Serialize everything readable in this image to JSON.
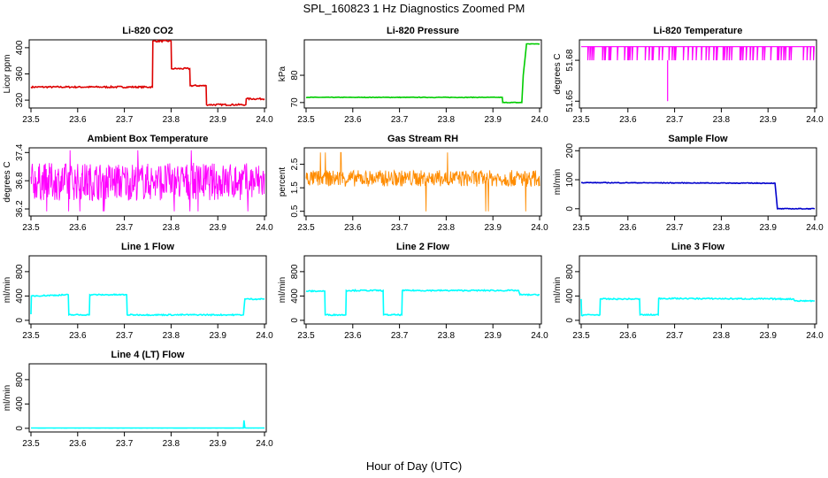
{
  "figure_title": "SPL_160823  1 Hz Diagnostics Zoomed PM",
  "x_axis_label": "Hour of Day (UTC)",
  "chart_data": [
    {
      "type": "line",
      "title": "Li-820 CO2",
      "ylabel": "Licor ppm",
      "color": "#dd0000",
      "xlim": [
        23.5,
        24.0
      ],
      "ylim": [
        308,
        412
      ],
      "xticks": [
        23.5,
        23.6,
        23.7,
        23.8,
        23.9,
        24.0
      ],
      "yticks": [
        320,
        360,
        400
      ],
      "x": [
        23.5,
        23.76,
        23.761,
        23.8,
        23.801,
        23.84,
        23.841,
        23.875,
        23.876,
        23.96,
        23.961,
        24.0
      ],
      "y": [
        340,
        340,
        410,
        410,
        368,
        368,
        342,
        342,
        313,
        313,
        322,
        322
      ],
      "noise": 1.2
    },
    {
      "type": "line",
      "title": "Li-820 Pressure",
      "ylabel": "kPa",
      "color": "#00cc00",
      "xlim": [
        23.5,
        24.0
      ],
      "ylim": [
        68,
        93
      ],
      "xticks": [
        23.5,
        23.6,
        23.7,
        23.8,
        23.9,
        24.0
      ],
      "yticks": [
        70,
        80
      ],
      "x": [
        23.5,
        23.92,
        23.921,
        23.962,
        23.965,
        23.972,
        24.0
      ],
      "y": [
        71.9,
        71.9,
        70.0,
        70.0,
        80,
        91.5,
        91.5
      ],
      "noise": 0.1
    },
    {
      "type": "spikes",
      "title": "Li-820 Temperature",
      "ylabel": "degrees C",
      "color": "#ff00ff",
      "xlim": [
        23.5,
        24.0
      ],
      "ylim": [
        51.645,
        51.695
      ],
      "xticks": [
        23.5,
        23.6,
        23.7,
        23.8,
        23.9,
        24.0
      ],
      "yticks": [
        51.65,
        51.68
      ],
      "levels": [
        51.68,
        51.69
      ],
      "min_spike": [
        23.685,
        51.65
      ],
      "spike_count": 70
    },
    {
      "type": "noise",
      "title": "Ambient Box Temperature",
      "ylabel": "degrees C",
      "color": "#ff00ff",
      "xlim": [
        23.5,
        24.0
      ],
      "ylim": [
        36.05,
        37.5
      ],
      "xticks": [
        23.5,
        23.6,
        23.7,
        23.8,
        23.9,
        24.0
      ],
      "yticks": [
        36.2,
        36.8,
        37.4
      ],
      "center": 36.78,
      "spread": 0.4,
      "min": 36.15,
      "max": 37.45
    },
    {
      "type": "noise",
      "title": "Gas Stream RH",
      "ylabel": "percent",
      "color": "#ff8c00",
      "xlim": [
        23.5,
        24.0
      ],
      "ylim": [
        0.3,
        3.2
      ],
      "xticks": [
        23.5,
        23.6,
        23.7,
        23.8,
        23.9,
        24.0
      ],
      "yticks": [
        0.5,
        1.5,
        2.5
      ],
      "center": 1.9,
      "spread": 0.35,
      "min": 0.5,
      "max": 3.0
    },
    {
      "type": "line",
      "title": "Sample Flow",
      "ylabel": "ml/min",
      "color": "#0000cc",
      "xlim": [
        23.5,
        24.0
      ],
      "ylim": [
        -25,
        210
      ],
      "xticks": [
        23.5,
        23.6,
        23.7,
        23.8,
        23.9,
        24.0
      ],
      "yticks": [
        0,
        100,
        200
      ],
      "x": [
        23.5,
        23.915,
        23.92,
        24.0
      ],
      "y": [
        90,
        88,
        0,
        0
      ],
      "noise": 1.2
    },
    {
      "type": "line",
      "title": "Line 1 Flow",
      "ylabel": "ml/min",
      "color": "#00ffff",
      "xlim": [
        23.5,
        24.0
      ],
      "ylim": [
        -60,
        1060
      ],
      "xticks": [
        23.5,
        23.6,
        23.7,
        23.8,
        23.9,
        24.0
      ],
      "yticks": [
        0,
        400,
        800
      ],
      "x": [
        23.5,
        23.501,
        23.58,
        23.581,
        23.625,
        23.626,
        23.705,
        23.706,
        23.955,
        23.958,
        24.0
      ],
      "y": [
        100,
        400,
        420,
        90,
        90,
        420,
        420,
        90,
        90,
        350,
        350
      ],
      "noise": 10
    },
    {
      "type": "line",
      "title": "Line 2 Flow",
      "ylabel": "ml/min",
      "color": "#00ffff",
      "xlim": [
        23.5,
        24.0
      ],
      "ylim": [
        -60,
        1060
      ],
      "xticks": [
        23.5,
        23.6,
        23.7,
        23.8,
        23.9,
        24.0
      ],
      "yticks": [
        0,
        400,
        800
      ],
      "x": [
        23.5,
        23.54,
        23.541,
        23.585,
        23.586,
        23.665,
        23.666,
        23.705,
        23.706,
        23.955,
        23.958,
        24.0
      ],
      "y": [
        480,
        480,
        90,
        90,
        490,
        490,
        90,
        90,
        490,
        490,
        420,
        420
      ],
      "noise": 10
    },
    {
      "type": "line",
      "title": "Line 3 Flow",
      "ylabel": "ml/min",
      "color": "#00ffff",
      "xlim": [
        23.5,
        24.0
      ],
      "ylim": [
        -60,
        1060
      ],
      "xticks": [
        23.5,
        23.6,
        23.7,
        23.8,
        23.9,
        24.0
      ],
      "yticks": [
        0,
        400,
        800
      ],
      "x": [
        23.5,
        23.501,
        23.505,
        23.54,
        23.541,
        23.625,
        23.626,
        23.665,
        23.666,
        23.955,
        23.958,
        24.0
      ],
      "y": [
        350,
        80,
        90,
        90,
        350,
        350,
        90,
        90,
        360,
        350,
        320,
        320
      ],
      "noise": 10
    },
    {
      "type": "line",
      "title": "Line 4 (LT) Flow",
      "ylabel": "ml/min",
      "color": "#00ffff",
      "xlim": [
        23.5,
        24.0
      ],
      "ylim": [
        -60,
        1060
      ],
      "xticks": [
        23.5,
        23.6,
        23.7,
        23.8,
        23.9,
        24.0
      ],
      "yticks": [
        0,
        400,
        800
      ],
      "x": [
        23.5,
        23.955,
        23.956,
        23.958,
        23.96,
        24.0
      ],
      "y": [
        5,
        5,
        130,
        10,
        5,
        5
      ],
      "noise": 1
    }
  ]
}
